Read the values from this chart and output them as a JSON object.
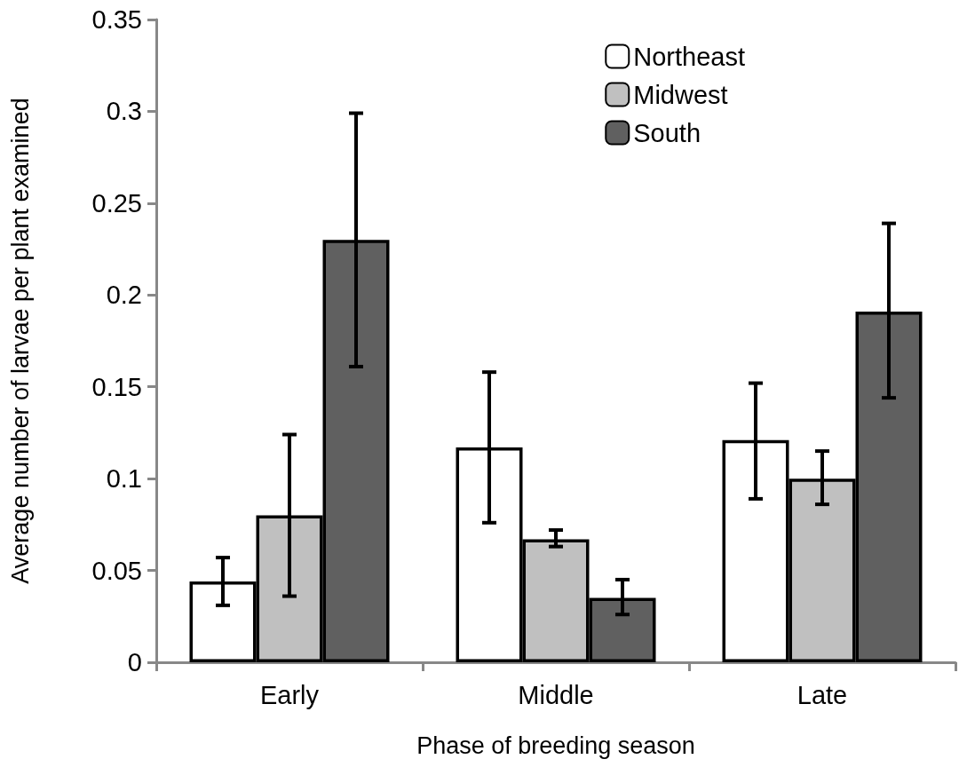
{
  "chart_data": {
    "type": "bar",
    "xlabel": "Phase of breeding season",
    "ylabel": "Average number of larvae per plant examined",
    "categories": [
      "Early",
      "Middle",
      "Late"
    ],
    "series": [
      {
        "name": "Northeast",
        "color": "#ffffff",
        "values": [
          0.044,
          0.117,
          0.121
        ],
        "errors": [
          [
            0.031,
            0.057
          ],
          [
            0.076,
            0.158
          ],
          [
            0.089,
            0.152
          ]
        ]
      },
      {
        "name": "Midwest",
        "color": "#c0c0c0",
        "values": [
          0.08,
          0.067,
          0.1
        ],
        "errors": [
          [
            0.036,
            0.124
          ],
          [
            0.063,
            0.072
          ],
          [
            0.086,
            0.115
          ]
        ]
      },
      {
        "name": "South",
        "color": "#606060",
        "values": [
          0.23,
          0.035,
          0.191
        ],
        "errors": [
          [
            0.161,
            0.299
          ],
          [
            0.026,
            0.045
          ],
          [
            0.144,
            0.239
          ]
        ]
      }
    ],
    "ylim": [
      0,
      0.35
    ],
    "yticks": [
      0,
      0.05,
      0.1,
      0.15,
      0.2,
      0.25,
      0.3,
      0.35
    ],
    "grid": false,
    "legend": "top right"
  }
}
